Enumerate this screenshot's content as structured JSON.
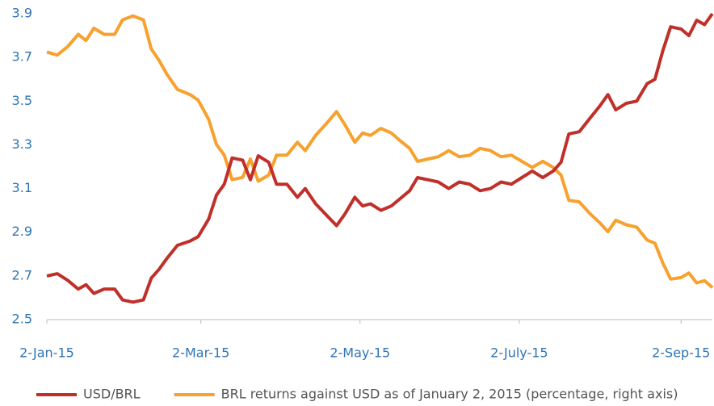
{
  "chart_data": {
    "type": "line",
    "x": [
      "2015-01-02",
      "2015-01-06",
      "2015-01-10",
      "2015-01-14",
      "2015-01-17",
      "2015-01-20",
      "2015-01-24",
      "2015-01-28",
      "2015-01-31",
      "2015-02-04",
      "2015-02-08",
      "2015-02-11",
      "2015-02-14",
      "2015-02-17",
      "2015-02-21",
      "2015-02-26",
      "2015-03-01",
      "2015-03-05",
      "2015-03-08",
      "2015-03-11",
      "2015-03-14",
      "2015-03-18",
      "2015-03-21",
      "2015-03-24",
      "2015-03-28",
      "2015-03-31",
      "2015-04-04",
      "2015-04-08",
      "2015-04-11",
      "2015-04-15",
      "2015-04-19",
      "2015-04-23",
      "2015-04-26",
      "2015-04-30",
      "2015-05-03",
      "2015-05-06",
      "2015-05-10",
      "2015-05-14",
      "2015-05-17",
      "2015-05-21",
      "2015-05-24",
      "2015-05-28",
      "2015-06-01",
      "2015-06-05",
      "2015-06-09",
      "2015-06-13",
      "2015-06-17",
      "2015-06-21",
      "2015-06-25",
      "2015-06-29",
      "2015-07-03",
      "2015-07-07",
      "2015-07-11",
      "2015-07-15",
      "2015-07-18",
      "2015-07-21",
      "2015-07-25",
      "2015-07-29",
      "2015-08-02",
      "2015-08-05",
      "2015-08-08",
      "2015-08-12",
      "2015-08-16",
      "2015-08-20",
      "2015-08-23",
      "2015-08-26",
      "2015-08-29",
      "2015-09-02",
      "2015-09-05",
      "2015-09-08",
      "2015-09-11",
      "2015-09-14"
    ],
    "series": [
      {
        "name": "USD/BRL",
        "color": "#c0302a",
        "values": [
          2.7,
          2.71,
          2.68,
          2.64,
          2.66,
          2.62,
          2.64,
          2.64,
          2.59,
          2.58,
          2.59,
          2.69,
          2.73,
          2.78,
          2.84,
          2.86,
          2.88,
          2.96,
          3.07,
          3.12,
          3.24,
          3.23,
          3.14,
          3.25,
          3.22,
          3.12,
          3.12,
          3.06,
          3.1,
          3.03,
          2.98,
          2.93,
          2.98,
          3.06,
          3.02,
          3.03,
          3.0,
          3.02,
          3.05,
          3.09,
          3.15,
          3.14,
          3.13,
          3.1,
          3.13,
          3.12,
          3.09,
          3.1,
          3.13,
          3.12,
          3.15,
          3.18,
          3.15,
          3.18,
          3.22,
          3.35,
          3.36,
          3.42,
          3.48,
          3.53,
          3.46,
          3.49,
          3.5,
          3.58,
          3.6,
          3.73,
          3.84,
          3.83,
          3.8,
          3.87,
          3.85,
          3.9
        ]
      },
      {
        "name": "BRL returns against USD as of January 2, 2015 (percentage, right axis)",
        "color": "#f7a12e",
        "axis": "y2",
        "values": [
          0.0,
          -0.4,
          0.7,
          2.3,
          1.5,
          3.1,
          2.3,
          2.3,
          4.2,
          4.7,
          4.2,
          0.4,
          -1.1,
          -2.9,
          -4.9,
          -5.6,
          -6.3,
          -8.8,
          -12.1,
          -13.5,
          -16.7,
          -16.4,
          -14.0,
          -16.9,
          -16.1,
          -13.5,
          -13.5,
          -11.8,
          -12.9,
          -10.9,
          -9.4,
          -7.8,
          -9.4,
          -11.8,
          -10.6,
          -10.9,
          -10.0,
          -10.6,
          -11.5,
          -12.6,
          -14.3,
          -14.0,
          -13.7,
          -12.9,
          -13.7,
          -13.5,
          -12.6,
          -12.9,
          -13.7,
          -13.5,
          -14.3,
          -15.1,
          -14.3,
          -15.1,
          -16.1,
          -19.4,
          -19.6,
          -21.1,
          -22.4,
          -23.5,
          -22.0,
          -22.6,
          -22.9,
          -24.6,
          -25.0,
          -27.6,
          -29.7,
          -29.5,
          -28.9,
          -30.2,
          -29.9,
          -30.8
        ]
      }
    ],
    "xlim": [
      "2015-01-02",
      "2015-09-14"
    ],
    "xticks": [
      {
        "value": "2015-01-02",
        "label": "2-Jan-15"
      },
      {
        "value": "2015-03-02",
        "label": "2-Mar-15"
      },
      {
        "value": "2015-05-02",
        "label": "2-May-15"
      },
      {
        "value": "2015-07-02",
        "label": "2-July-15"
      },
      {
        "value": "2015-09-02",
        "label": "2-Sep-15"
      }
    ],
    "ylim": [
      2.5,
      3.9
    ],
    "yticks": [
      2.5,
      2.7,
      2.9,
      3.1,
      3.3,
      3.5,
      3.7,
      3.9
    ],
    "y2lim": [
      -35,
      5
    ],
    "legend": "bottom"
  }
}
